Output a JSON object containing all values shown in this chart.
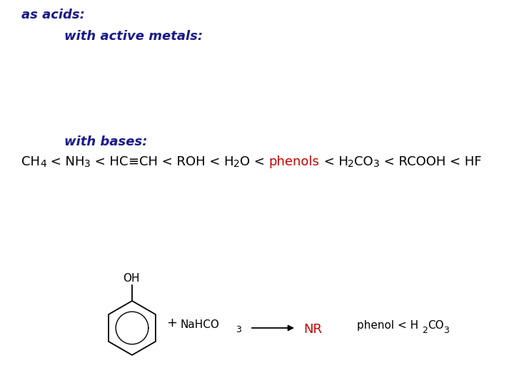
{
  "bg_color": "#ffffff",
  "title_color": "#1a1a8c",
  "black_color": "#000000",
  "red_color": "#cc0000",
  "as_acids_text": "as acids:",
  "with_active_metals_text": "with active metals:",
  "with_bases_text": "with bases:",
  "figsize": [
    7.2,
    5.4
  ],
  "dpi": 100
}
